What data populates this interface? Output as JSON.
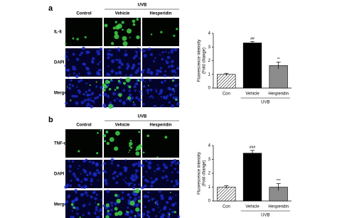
{
  "panels": [
    {
      "label": "a",
      "group": "UVB",
      "columns": [
        "Control",
        "Vehicle",
        "Hesperidin"
      ],
      "rows": [
        "IL-8",
        "DAPI",
        "Merge"
      ]
    },
    {
      "label": "b",
      "group": "UVB",
      "columns": [
        "Control",
        "Vehicle",
        "Hesperidin"
      ],
      "rows": [
        "TNF-α",
        "DAPI",
        "Merge"
      ]
    }
  ],
  "chart_data": [
    {
      "type": "bar",
      "y_label": [
        "Fluorescence intensity",
        "(Fold change)"
      ],
      "categories": [
        "Con",
        "Vehicle",
        "Hesperidin"
      ],
      "values": [
        1.0,
        3.3,
        1.65
      ],
      "errors": [
        0.08,
        0.1,
        0.25
      ],
      "annotations": [
        null,
        "##",
        "**"
      ],
      "group_label": "UVB",
      "colors": [
        "#ffffff",
        "#000000",
        "#8c8c8c"
      ],
      "hatch": [
        true,
        false,
        false
      ],
      "ylim": [
        0,
        4
      ],
      "yticks": [
        0,
        1,
        2,
        3,
        4
      ]
    },
    {
      "type": "bar",
      "y_label": [
        "Fluorescence intensity",
        "(Fold change)"
      ],
      "categories": [
        "Con",
        "Vehicle",
        "Hesperidin"
      ],
      "values": [
        1.0,
        3.45,
        1.0
      ],
      "errors": [
        0.1,
        0.2,
        0.25
      ],
      "annotations": [
        null,
        "###",
        "***"
      ],
      "group_label": "UVB",
      "colors": [
        "#ffffff",
        "#000000",
        "#8c8c8c"
      ],
      "hatch": [
        true,
        false,
        false
      ],
      "ylim": [
        0,
        4
      ],
      "yticks": [
        0,
        1,
        2,
        3,
        4
      ]
    }
  ]
}
